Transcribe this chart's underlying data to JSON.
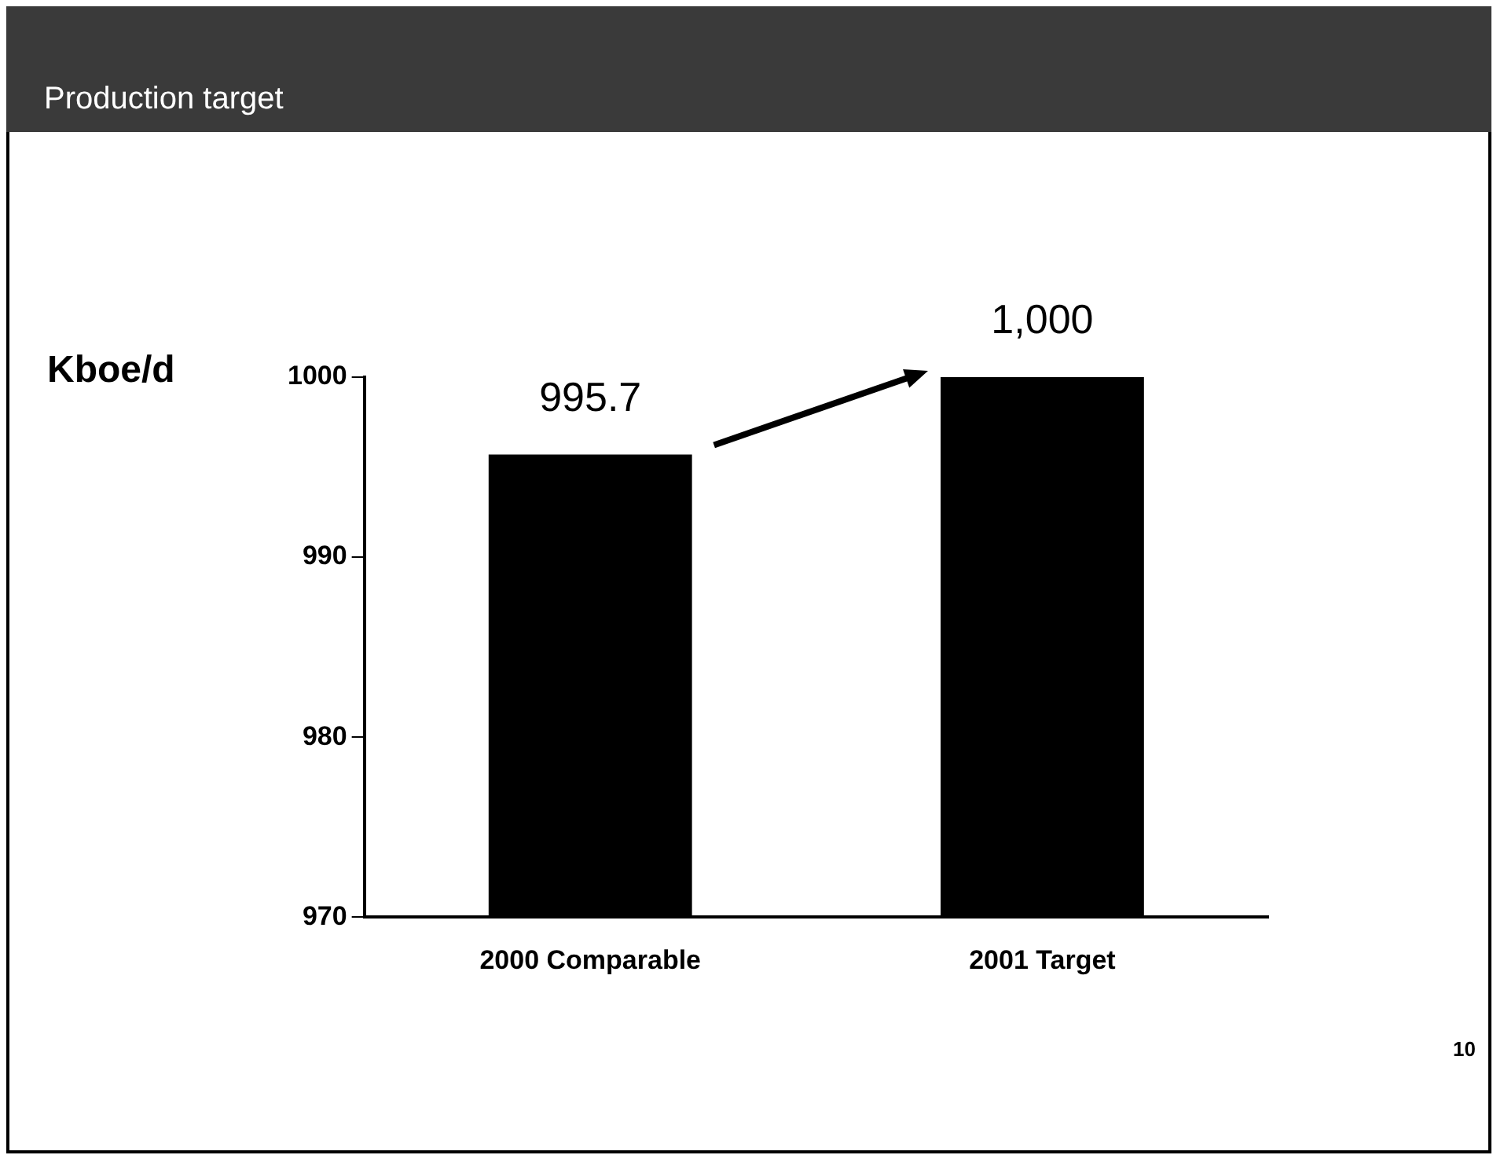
{
  "chart_data": {
    "type": "bar",
    "title": "Production target",
    "ylabel": "Kboe/d",
    "categories": [
      "2000 Comparable",
      "2001 Target"
    ],
    "values": [
      995.7,
      1000
    ],
    "color": "#000000",
    "value_labels": [
      "995.7",
      "1,000"
    ],
    "ylim": [
      970,
      1000
    ],
    "yticks": [
      970,
      980,
      990,
      1000
    ],
    "grid": false,
    "annotations": [
      "10"
    ]
  }
}
